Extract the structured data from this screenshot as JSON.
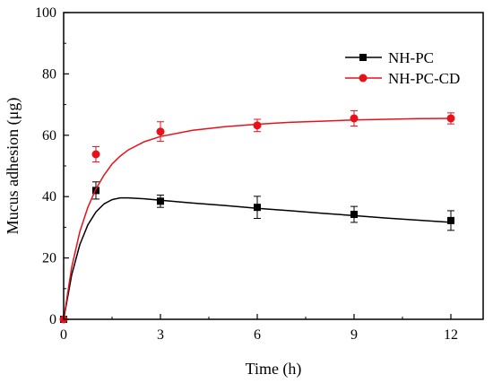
{
  "chart_data": {
    "type": "scatter",
    "xlabel": "Time (h)",
    "ylabel": "Mucus adhesion (μg)",
    "xlim": [
      0,
      13
    ],
    "ylim": [
      0,
      100
    ],
    "xticks": [
      0,
      3,
      6,
      9,
      12
    ],
    "yticks": [
      0,
      20,
      40,
      60,
      80,
      100
    ],
    "legend_position": "top-right",
    "grid": false,
    "series": [
      {
        "name": "NH-PC",
        "marker": "square",
        "color": "#000000",
        "x": [
          0,
          1,
          3,
          6,
          9,
          12
        ],
        "y": [
          0,
          42.0,
          38.5,
          36.5,
          34.2,
          32.2
        ],
        "err": [
          0,
          2.8,
          2.0,
          3.6,
          2.6,
          3.2
        ],
        "fit": {
          "x": [
            0,
            0.25,
            0.5,
            0.75,
            1,
            1.25,
            1.5,
            1.75,
            2,
            2.5,
            3,
            4,
            5,
            6,
            7,
            8,
            9,
            10,
            11,
            12
          ],
          "y": [
            0,
            14.5,
            24.3,
            30.8,
            35.0,
            37.6,
            39.0,
            39.6,
            39.6,
            39.3,
            38.8,
            37.9,
            37.1,
            36.2,
            35.4,
            34.6,
            33.8,
            33.0,
            32.3,
            31.6
          ]
        }
      },
      {
        "name": "NH-PC-CD",
        "marker": "circle",
        "color": "#e8111a",
        "x": [
          0,
          1,
          3,
          6,
          9,
          12
        ],
        "y": [
          0,
          53.8,
          61.2,
          63.2,
          65.5,
          65.5
        ],
        "err": [
          0,
          2.5,
          3.2,
          2.0,
          2.5,
          1.8
        ],
        "fit": {
          "x": [
            0,
            0.25,
            0.5,
            0.75,
            1,
            1.25,
            1.5,
            1.75,
            2,
            2.5,
            3,
            4,
            5,
            6,
            7,
            8,
            9,
            10,
            11,
            12
          ],
          "y": [
            0,
            17.0,
            28.5,
            36.5,
            42.5,
            47.0,
            50.6,
            53.2,
            55.2,
            57.9,
            59.6,
            61.6,
            62.8,
            63.6,
            64.2,
            64.6,
            65.0,
            65.2,
            65.4,
            65.5
          ]
        }
      }
    ]
  }
}
